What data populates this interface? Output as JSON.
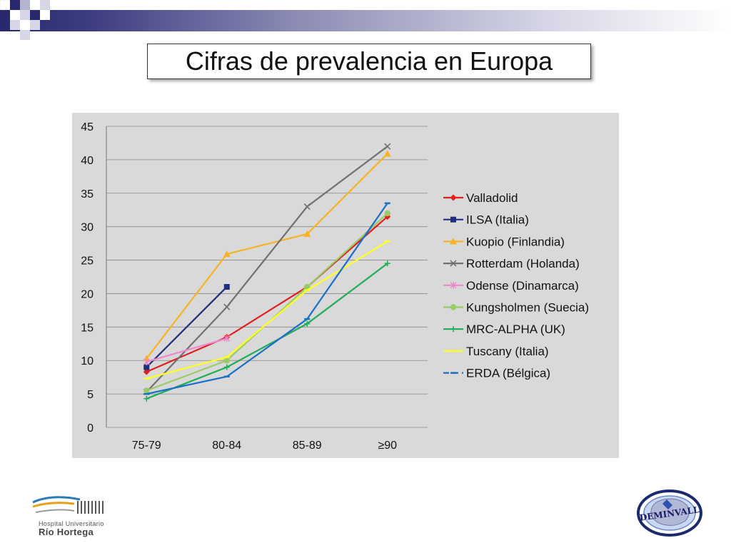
{
  "slide": {
    "title": "Cifras de prevalencia en Europa"
  },
  "logos": {
    "left_line1": "Hospital Universitario",
    "left_line2": "Río Hortega",
    "right_text": "DEMINVALL"
  },
  "colors": {
    "band_dark": "#28286e",
    "panel_bg": "#d9d9d9"
  },
  "chart_data": {
    "type": "line",
    "title": "",
    "xlabel": "",
    "ylabel": "",
    "categories": [
      "75-79",
      "80-84",
      "85-89",
      "≥90"
    ],
    "ylim": [
      0,
      45
    ],
    "yticks": [
      0,
      5,
      10,
      15,
      20,
      25,
      30,
      35,
      40,
      45
    ],
    "grid": true,
    "legend_position": "right",
    "series": [
      {
        "name": "Valladolid",
        "values": [
          8.3,
          13.5,
          21,
          31.5
        ],
        "color": "#e02020",
        "marker": "diamond"
      },
      {
        "name": "ILSA (Italia)",
        "values": [
          9,
          21,
          null,
          null
        ],
        "color": "#1f2f80",
        "marker": "square"
      },
      {
        "name": "Kuopio (Finlandia)",
        "values": [
          10.3,
          25.9,
          28.9,
          40.9
        ],
        "color": "#f6b324",
        "marker": "triangle"
      },
      {
        "name": "Rotterdam (Holanda)",
        "values": [
          5.3,
          18,
          33,
          42
        ],
        "color": "#707070",
        "marker": "x"
      },
      {
        "name": "Odense (Dinamarca)",
        "values": [
          9.8,
          13.3,
          null,
          null
        ],
        "color": "#ee88cc",
        "marker": "star"
      },
      {
        "name": "Kungsholmen (Suecia)",
        "values": [
          5.5,
          10,
          21,
          32
        ],
        "color": "#99cc66",
        "marker": "circle"
      },
      {
        "name": "MRC-ALPHA (UK)",
        "values": [
          4.3,
          9,
          15.5,
          24.5
        ],
        "color": "#1fae55",
        "marker": "plus"
      },
      {
        "name": "Tuscany (Italia)",
        "values": [
          7.3,
          10.5,
          20.5,
          27.8
        ],
        "color": "#ffff22",
        "marker": "dash"
      },
      {
        "name": "ERDA (Bélgica)",
        "values": [
          5,
          7.6,
          16.2,
          33.5
        ],
        "color": "#1a6ec8",
        "marker": "dash"
      }
    ]
  }
}
